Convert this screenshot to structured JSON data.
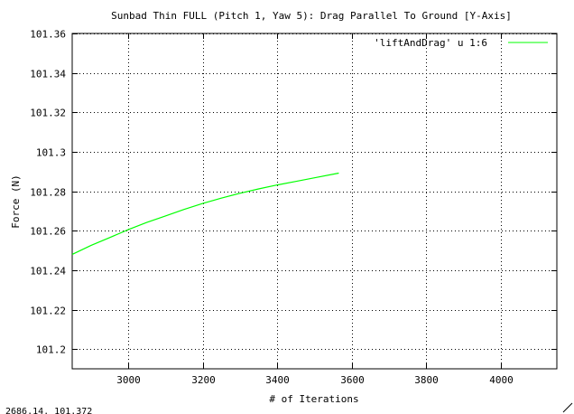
{
  "chart_data": {
    "type": "line",
    "title": "Sunbad Thin FULL (Pitch 1, Yaw 5): Drag Parallel To Ground [Y-Axis]",
    "xlabel": "# of Iterations",
    "ylabel": "Force (N)",
    "xlim": [
      2850,
      4150
    ],
    "ylim": [
      101.19,
      101.36
    ],
    "xticks": [
      3000,
      3200,
      3400,
      3600,
      3800,
      4000
    ],
    "yticks": [
      101.2,
      101.22,
      101.24,
      101.26,
      101.28,
      101.3,
      101.32,
      101.34,
      101.36
    ],
    "ytick_labels": [
      "101.2",
      "101.22",
      "101.24",
      "101.26",
      "101.28",
      "101.3",
      "101.32",
      "101.34",
      "101.36"
    ],
    "grid": true,
    "legend_position": "top-right",
    "series": [
      {
        "name": "'liftAndDrag' u 1:6",
        "color": "#00ff00",
        "x": [
          2850,
          2900,
          2950,
          3000,
          3050,
          3100,
          3150,
          3200,
          3250,
          3300,
          3350,
          3400,
          3450,
          3500,
          3565
        ],
        "y": [
          101.248,
          101.2525,
          101.2565,
          101.2605,
          101.2642,
          101.2675,
          101.2708,
          101.2738,
          101.2765,
          101.279,
          101.2812,
          101.2832,
          101.285,
          101.2868,
          101.2892
        ]
      }
    ]
  },
  "status": {
    "coordinates": "2686.14,  101.372"
  }
}
